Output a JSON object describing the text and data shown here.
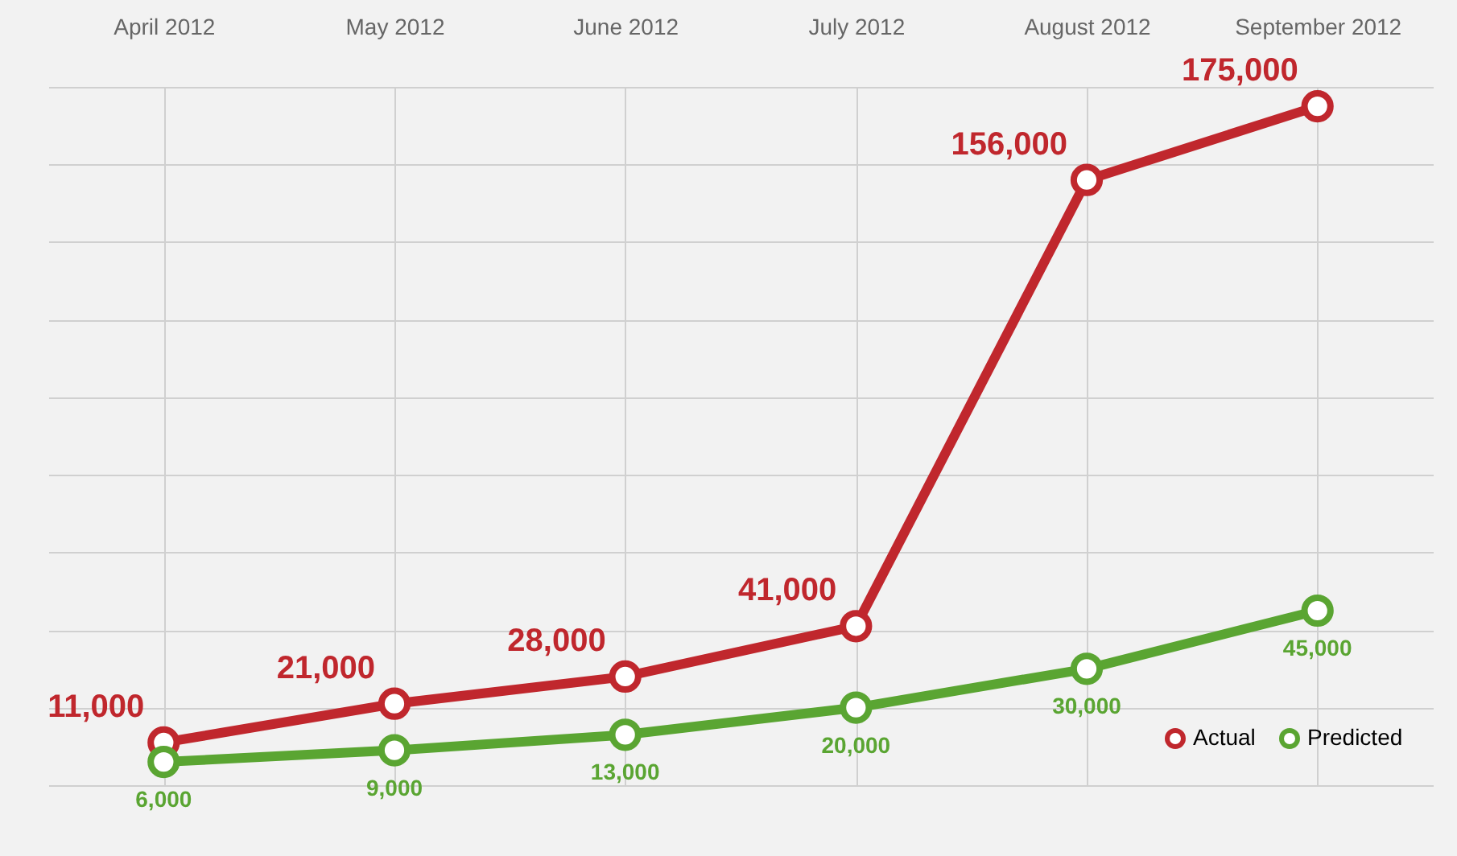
{
  "chart_data": {
    "type": "line",
    "categories": [
      "April 2012",
      "May 2012",
      "June 2012",
      "July 2012",
      "August 2012",
      "September 2012"
    ],
    "series": [
      {
        "name": "Actual",
        "color": "#c0272d",
        "values": [
          11000,
          21000,
          28000,
          41000,
          156000,
          175000
        ],
        "value_labels": [
          "11,000",
          "21,000",
          "28,000",
          "41,000",
          "156,000",
          "175,000"
        ]
      },
      {
        "name": "Predicted",
        "color": "#5aa532",
        "values": [
          6000,
          9000,
          13000,
          20000,
          30000,
          45000
        ],
        "value_labels": [
          "6,000",
          "9,000",
          "13,000",
          "20,000",
          "30,000",
          "45,000"
        ]
      }
    ],
    "grid": true,
    "tick_labels": "x",
    "legend": "bottom right",
    "marker": "circle",
    "line_style": "solid"
  }
}
